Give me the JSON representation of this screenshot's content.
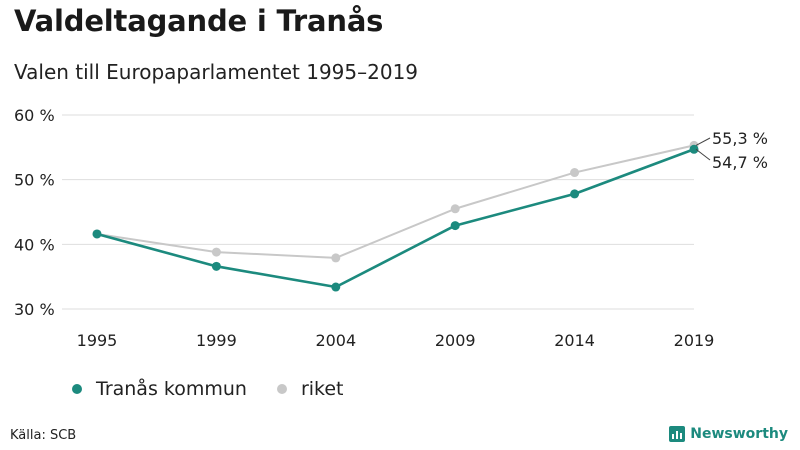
{
  "title": "Valdeltagande i Tranås",
  "subtitle": "Valen till Europaparlamentet 1995–2019",
  "source": "Källa: SCB",
  "brand": "Newsworthy",
  "colors": {
    "kommun": "#1c8a7e",
    "riket": "#c8c8c8",
    "grid": "#dedede"
  },
  "chart_data": {
    "type": "line",
    "categories": [
      "1995",
      "1999",
      "2004",
      "2009",
      "2014",
      "2019"
    ],
    "ylim": [
      30,
      60
    ],
    "yticks": [
      30,
      40,
      50,
      60
    ],
    "ytick_labels": [
      "30 %",
      "40 %",
      "50 %",
      "60 %"
    ],
    "series": [
      {
        "name": "Tranås kommun",
        "values": [
          41.6,
          36.6,
          33.4,
          42.9,
          47.8,
          54.7
        ],
        "end_label": "54,7 %"
      },
      {
        "name": "riket",
        "values": [
          41.6,
          38.8,
          37.9,
          45.5,
          51.1,
          55.3
        ],
        "end_label": "55,3 %"
      }
    ],
    "grid": true,
    "legend": "bottom-left"
  }
}
